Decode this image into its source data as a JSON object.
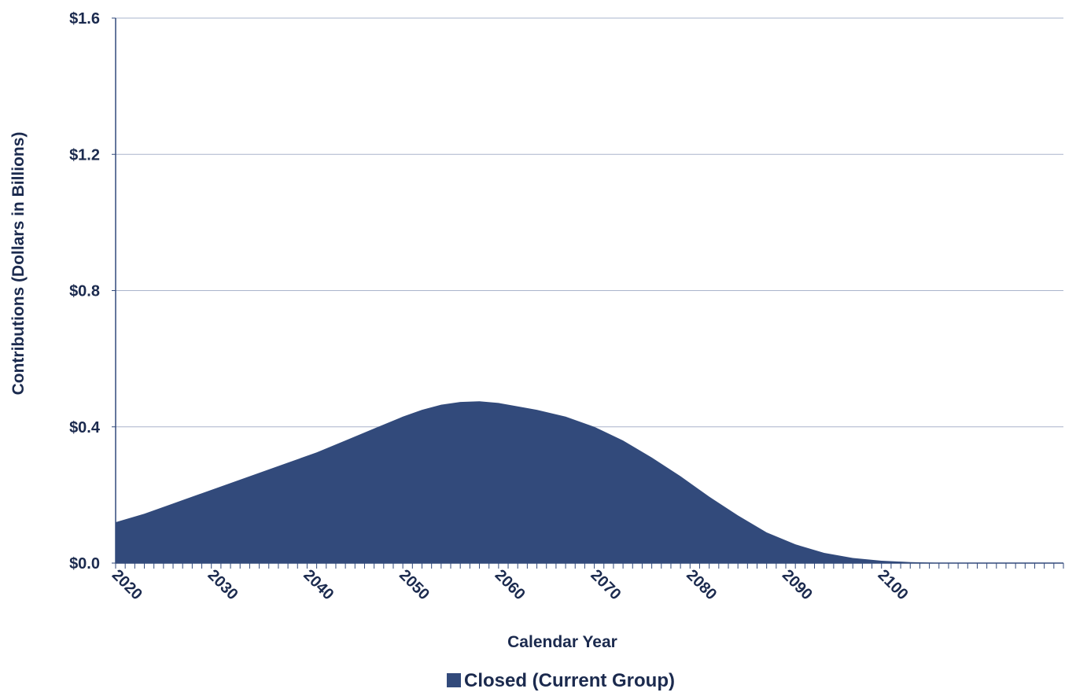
{
  "chart_data": {
    "type": "area",
    "title": "",
    "xlabel": "Calendar Year",
    "ylabel": "Contributions (Dollars in Billions)",
    "xlim": [
      2019,
      2118
    ],
    "ylim": [
      0,
      1.6
    ],
    "y_ticks": [
      0.0,
      0.4,
      0.8,
      1.2,
      1.6
    ],
    "y_tick_labels": [
      "$0.0",
      "$0.4",
      "$0.8",
      "$1.2",
      "$1.6"
    ],
    "x_ticks": [
      2020,
      2030,
      2040,
      2050,
      2060,
      2070,
      2080,
      2090,
      2100
    ],
    "x_tick_labels": [
      "2020",
      "2030",
      "2040",
      "2050",
      "2060",
      "2070",
      "2080",
      "2090",
      "2100"
    ],
    "grid": true,
    "legend_position": "bottom-center",
    "series": [
      {
        "name": "Closed (Current Group)",
        "color": "#324a7b",
        "x": [
          2019,
          2022,
          2025,
          2028,
          2031,
          2034,
          2037,
          2040,
          2043,
          2046,
          2049,
          2051,
          2053,
          2055,
          2057,
          2059,
          2061,
          2063,
          2066,
          2069,
          2072,
          2075,
          2078,
          2081,
          2084,
          2087,
          2090,
          2093,
          2096,
          2099,
          2102,
          2105,
          2108,
          2112,
          2118
        ],
        "values": [
          0.12,
          0.145,
          0.175,
          0.205,
          0.235,
          0.265,
          0.295,
          0.325,
          0.36,
          0.395,
          0.43,
          0.45,
          0.465,
          0.473,
          0.475,
          0.47,
          0.46,
          0.45,
          0.43,
          0.4,
          0.36,
          0.31,
          0.255,
          0.195,
          0.14,
          0.09,
          0.055,
          0.03,
          0.015,
          0.007,
          0.003,
          0.001,
          0.0005,
          0.0001,
          0.0
        ]
      }
    ]
  }
}
